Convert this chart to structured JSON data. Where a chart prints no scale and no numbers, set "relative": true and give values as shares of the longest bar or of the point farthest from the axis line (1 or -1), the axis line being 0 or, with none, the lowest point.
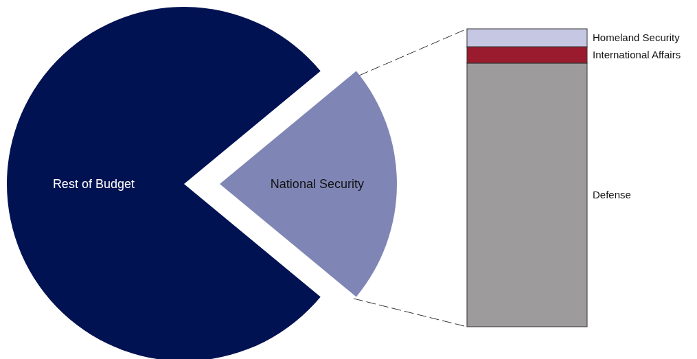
{
  "chart_data": [
    {
      "type": "pie",
      "categories": [
        "Rest of Budget",
        "National Security"
      ],
      "values": [
        78,
        22
      ],
      "colors": [
        "#001252",
        "#7f86b5"
      ]
    },
    {
      "type": "bar",
      "stacked": true,
      "relative": true,
      "categories": [
        null
      ],
      "series": [
        {
          "name": "Defense",
          "color": "#9d9b9b",
          "values": [
            0.885
          ]
        },
        {
          "name": "International Affairs",
          "color": "#9b1b2e",
          "values": [
            0.055
          ]
        },
        {
          "name": "Homeland Security",
          "color": "#c5c7e3",
          "values": [
            0.06
          ]
        }
      ]
    }
  ]
}
